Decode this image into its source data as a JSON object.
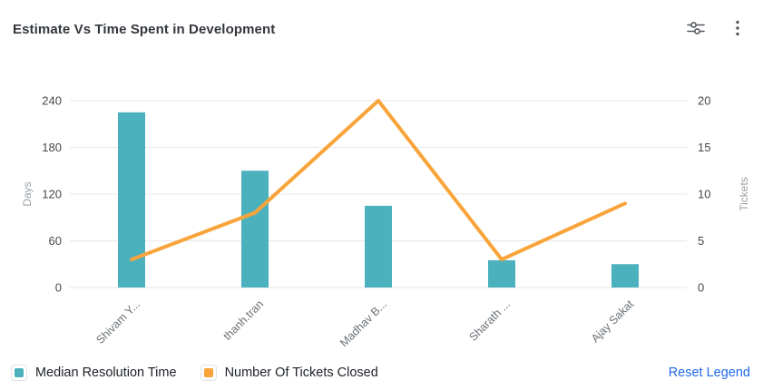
{
  "header": {
    "title": "Estimate Vs Time Spent in Development",
    "filter_icon": "sliders-icon",
    "menu_icon": "kebab-menu-icon"
  },
  "chart_data": {
    "type": "bar",
    "title": "Estimate Vs Time Spent in Development",
    "categories": [
      "Shivam Y...",
      "thanh.tran",
      "Madhav B...",
      "Sharath ...",
      "Ajay Sakat"
    ],
    "series": [
      {
        "name": "Median Resolution Time",
        "type": "bar",
        "axis": "left",
        "color": "#4bb1bc",
        "values": [
          225,
          150,
          105,
          35,
          30
        ]
      },
      {
        "name": "Number Of Tickets Closed",
        "type": "line",
        "axis": "right",
        "color": "#f9a43a",
        "values": [
          3,
          8,
          20,
          3,
          9
        ]
      }
    ],
    "left_axis": {
      "label": "Days",
      "ticks": [
        0,
        60,
        120,
        180,
        240
      ],
      "min": 0,
      "max": 240
    },
    "right_axis": {
      "label": "Tickets",
      "ticks": [
        0,
        5,
        10,
        15,
        20
      ],
      "min": 0,
      "max": 20
    },
    "grid": true,
    "legend_position": "bottom",
    "xlabel": "",
    "ylabel": "Days"
  },
  "legend": {
    "items": [
      {
        "label": "Median Resolution Time",
        "color": "#4bb1bc"
      },
      {
        "label": "Number Of Tickets Closed",
        "color": "#f9a43a"
      }
    ],
    "reset_label": "Reset Legend"
  },
  "colors": {
    "bar": "#4bb1bc",
    "line": "#f9a43a",
    "grid": "#ececee",
    "tick_text": "#44484c",
    "axis_name_text": "#9aa0a6",
    "x_label_text": "#6b7075",
    "title_text": "#33373c",
    "reset_link": "#2169e8",
    "icon": "#55595e"
  }
}
